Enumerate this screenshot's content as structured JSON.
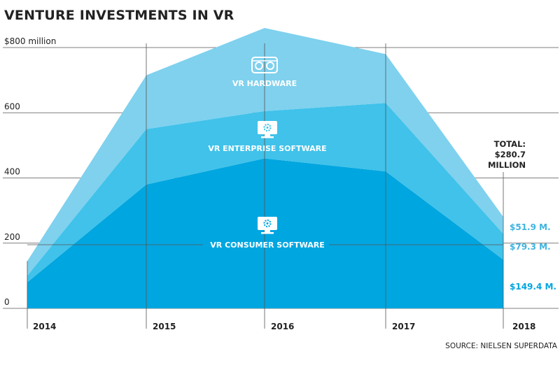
{
  "chart_data": {
    "type": "area",
    "stacked": true,
    "title": "VENTURE INVESTMENTS IN VR",
    "x": [
      "2014",
      "2015",
      "2016",
      "2017",
      "2018"
    ],
    "yticks": [
      "$800 million",
      "600",
      "400",
      "200",
      "0"
    ],
    "ytick_values": [
      800,
      600,
      400,
      200,
      0
    ],
    "ylim": [
      0,
      830
    ],
    "series": [
      {
        "name": "VR CONSUMER SOFTWARE",
        "values": [
          80,
          380,
          460,
          420,
          149.4
        ],
        "color": "#00a6e0",
        "icon": "monitor-gear-icon"
      },
      {
        "name": "VR ENTERPRISE SOFTWARE",
        "values": [
          20,
          170,
          145,
          210,
          79.3
        ],
        "color": "#40c2ea",
        "icon": "monitor-gear-icon"
      },
      {
        "name": "VR HARDWARE",
        "values": [
          45,
          165,
          255,
          150,
          51.9
        ],
        "color": "#7fd1ee",
        "icon": "vr-headset-icon"
      }
    ],
    "end_labels": [
      "$51.9 M.",
      "$79.3 M.",
      "$149.4 M."
    ],
    "total_label": [
      "TOTAL:",
      "$280.7",
      "MILLION"
    ],
    "grid": true,
    "source": "SOURCE: NIELSEN SUPERDATA"
  }
}
